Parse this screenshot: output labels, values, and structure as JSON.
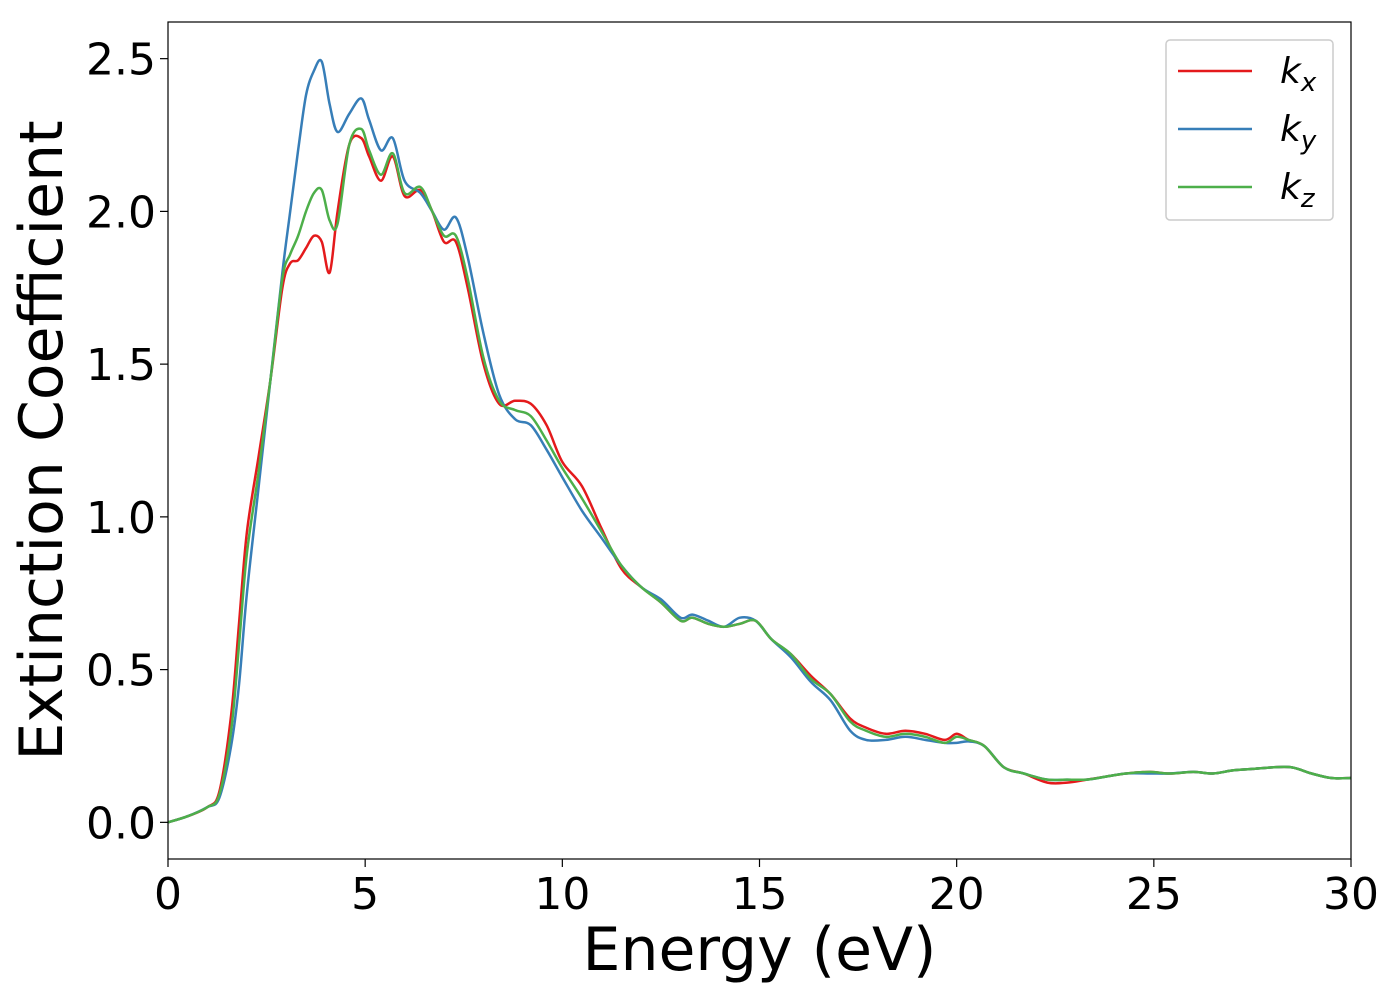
{
  "chart_data": {
    "type": "line",
    "xlabel": "Energy (eV)",
    "ylabel": "Extinction Coefficient",
    "xlim": [
      0,
      30
    ],
    "ylim": [
      -0.12,
      2.62
    ],
    "xticks": [
      "0",
      "5",
      "10",
      "15",
      "20",
      "25",
      "30"
    ],
    "yticks": [
      "0.0",
      "0.5",
      "1.0",
      "1.5",
      "2.0",
      "2.5"
    ],
    "grid": false,
    "legend_position": "top-right",
    "series": [
      {
        "name": "kx",
        "name_base": "k",
        "name_sub": "x",
        "color": "#e41a1c",
        "x": [
          0,
          0.5,
          1.0,
          1.3,
          1.6,
          1.8,
          2.0,
          2.3,
          2.6,
          2.9,
          3.1,
          3.3,
          3.5,
          3.7,
          3.9,
          4.1,
          4.3,
          4.6,
          4.9,
          5.1,
          5.4,
          5.7,
          6.0,
          6.4,
          6.7,
          7.0,
          7.3,
          7.6,
          8.0,
          8.4,
          8.8,
          9.2,
          9.6,
          10.0,
          10.5,
          11.0,
          11.5,
          12.0,
          12.5,
          13.0,
          13.3,
          13.7,
          14.1,
          14.5,
          14.9,
          15.3,
          15.8,
          16.3,
          16.8,
          17.3,
          17.7,
          18.2,
          18.7,
          19.2,
          19.7,
          20.0,
          20.3,
          20.7,
          21.2,
          21.7,
          22.3,
          22.8,
          23.3,
          23.8,
          24.3,
          24.9,
          25.4,
          26.0,
          26.5,
          27.0,
          27.5,
          28.0,
          28.5,
          29.0,
          29.5,
          30.0
        ],
        "y": [
          0.0,
          0.02,
          0.05,
          0.1,
          0.35,
          0.65,
          0.95,
          1.2,
          1.45,
          1.75,
          1.83,
          1.84,
          1.88,
          1.92,
          1.9,
          1.8,
          2.0,
          2.22,
          2.24,
          2.18,
          2.1,
          2.18,
          2.05,
          2.07,
          2.0,
          1.9,
          1.9,
          1.75,
          1.5,
          1.37,
          1.38,
          1.37,
          1.3,
          1.18,
          1.1,
          0.96,
          0.83,
          0.77,
          0.72,
          0.66,
          0.67,
          0.65,
          0.64,
          0.65,
          0.66,
          0.6,
          0.55,
          0.48,
          0.42,
          0.34,
          0.31,
          0.29,
          0.3,
          0.29,
          0.27,
          0.29,
          0.27,
          0.25,
          0.18,
          0.16,
          0.13,
          0.13,
          0.14,
          0.15,
          0.16,
          0.165,
          0.16,
          0.165,
          0.16,
          0.17,
          0.175,
          0.18,
          0.18,
          0.16,
          0.145,
          0.145
        ]
      },
      {
        "name": "ky",
        "name_base": "k",
        "name_sub": "y",
        "color": "#377eb8",
        "x": [
          0,
          0.5,
          1.0,
          1.3,
          1.6,
          1.8,
          2.0,
          2.3,
          2.6,
          2.9,
          3.1,
          3.3,
          3.5,
          3.7,
          3.9,
          4.1,
          4.3,
          4.6,
          4.9,
          5.1,
          5.4,
          5.7,
          6.0,
          6.4,
          6.7,
          7.0,
          7.3,
          7.6,
          8.0,
          8.4,
          8.8,
          9.2,
          9.6,
          10.0,
          10.5,
          11.0,
          11.5,
          12.0,
          12.5,
          13.0,
          13.3,
          13.7,
          14.1,
          14.5,
          14.9,
          15.3,
          15.8,
          16.3,
          16.8,
          17.3,
          17.7,
          18.2,
          18.7,
          19.2,
          19.7,
          20.0,
          20.3,
          20.7,
          21.2,
          21.7,
          22.3,
          22.8,
          23.3,
          23.8,
          24.3,
          24.9,
          25.4,
          26.0,
          26.5,
          27.0,
          27.5,
          28.0,
          28.5,
          29.0,
          29.5,
          30.0
        ],
        "y": [
          0.0,
          0.02,
          0.05,
          0.08,
          0.25,
          0.45,
          0.75,
          1.1,
          1.45,
          1.8,
          2.0,
          2.2,
          2.38,
          2.46,
          2.49,
          2.35,
          2.26,
          2.32,
          2.37,
          2.3,
          2.2,
          2.24,
          2.1,
          2.06,
          2.0,
          1.94,
          1.98,
          1.85,
          1.6,
          1.4,
          1.32,
          1.3,
          1.22,
          1.13,
          1.02,
          0.93,
          0.84,
          0.77,
          0.73,
          0.67,
          0.68,
          0.66,
          0.64,
          0.67,
          0.66,
          0.6,
          0.54,
          0.46,
          0.4,
          0.3,
          0.27,
          0.27,
          0.28,
          0.27,
          0.26,
          0.26,
          0.265,
          0.25,
          0.18,
          0.16,
          0.14,
          0.14,
          0.14,
          0.15,
          0.16,
          0.16,
          0.16,
          0.165,
          0.16,
          0.17,
          0.175,
          0.18,
          0.18,
          0.16,
          0.145,
          0.145
        ]
      },
      {
        "name": "kz",
        "name_base": "k",
        "name_sub": "z",
        "color": "#4daf4a",
        "x": [
          0,
          0.5,
          1.0,
          1.3,
          1.6,
          1.8,
          2.0,
          2.3,
          2.6,
          2.9,
          3.1,
          3.3,
          3.5,
          3.7,
          3.9,
          4.1,
          4.3,
          4.6,
          4.9,
          5.1,
          5.4,
          5.7,
          6.0,
          6.4,
          6.7,
          7.0,
          7.3,
          7.6,
          8.0,
          8.4,
          8.8,
          9.2,
          9.6,
          10.0,
          10.5,
          11.0,
          11.5,
          12.0,
          12.5,
          13.0,
          13.3,
          13.7,
          14.1,
          14.5,
          14.9,
          15.3,
          15.8,
          16.3,
          16.8,
          17.3,
          17.7,
          18.2,
          18.7,
          19.2,
          19.7,
          20.0,
          20.3,
          20.7,
          21.2,
          21.7,
          22.3,
          22.8,
          23.3,
          23.8,
          24.3,
          24.9,
          25.4,
          26.0,
          26.5,
          27.0,
          27.5,
          28.0,
          28.5,
          29.0,
          29.5,
          30.0
        ],
        "y": [
          0.0,
          0.02,
          0.05,
          0.09,
          0.3,
          0.58,
          0.88,
          1.15,
          1.45,
          1.78,
          1.86,
          1.92,
          2.0,
          2.06,
          2.07,
          1.97,
          1.96,
          2.22,
          2.27,
          2.2,
          2.12,
          2.19,
          2.06,
          2.08,
          2.0,
          1.92,
          1.92,
          1.78,
          1.52,
          1.38,
          1.35,
          1.33,
          1.25,
          1.16,
          1.06,
          0.95,
          0.84,
          0.77,
          0.72,
          0.66,
          0.67,
          0.65,
          0.64,
          0.65,
          0.66,
          0.6,
          0.55,
          0.47,
          0.42,
          0.33,
          0.3,
          0.28,
          0.29,
          0.28,
          0.26,
          0.28,
          0.27,
          0.25,
          0.18,
          0.16,
          0.14,
          0.14,
          0.14,
          0.15,
          0.16,
          0.165,
          0.16,
          0.165,
          0.16,
          0.17,
          0.175,
          0.18,
          0.18,
          0.16,
          0.145,
          0.145
        ]
      }
    ]
  }
}
